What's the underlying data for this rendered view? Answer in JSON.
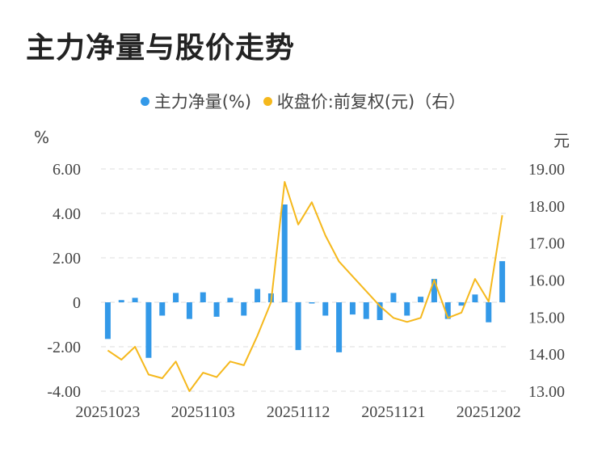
{
  "title": "主力净量与股价走势",
  "legend": {
    "series1": "主力净量(%)",
    "series2": "收盘价:前复权(元)（右）"
  },
  "left_unit": "%",
  "right_unit": "元",
  "colors": {
    "bar": "#3399e8",
    "line": "#f5b81c",
    "grid": "#dddddd"
  },
  "chart_data": {
    "type": "bar+line",
    "x_tick_labels": [
      "20251023",
      "20251103",
      "20251112",
      "20251121",
      "20251202"
    ],
    "left_axis": {
      "ticks": [
        "6.00",
        "4.00",
        "2.00",
        "0",
        "-2.00",
        "-4.00"
      ],
      "range": [
        -4,
        6
      ]
    },
    "right_axis": {
      "ticks": [
        "19.00",
        "18.00",
        "17.00",
        "16.00",
        "15.00",
        "14.00",
        "13.00"
      ],
      "range": [
        13,
        19
      ]
    },
    "series": [
      {
        "name": "主力净量(%)",
        "type": "bar",
        "values": [
          -1.65,
          0.1,
          0.2,
          -2.5,
          -0.6,
          0.42,
          -0.75,
          0.45,
          -0.65,
          0.2,
          -0.6,
          0.6,
          0.4,
          4.4,
          -2.15,
          0.0,
          -0.6,
          -2.25,
          -0.55,
          -0.75,
          -0.8,
          0.42,
          -0.6,
          0.25,
          1.05,
          -0.75,
          -0.15,
          0.35,
          -0.9,
          1.85
        ]
      },
      {
        "name": "收盘价:前复权(元)（右）",
        "type": "line",
        "values": [
          14.1,
          13.85,
          14.2,
          13.45,
          13.35,
          13.8,
          13.0,
          13.5,
          13.38,
          13.8,
          13.7,
          14.5,
          15.4,
          18.65,
          17.5,
          18.1,
          17.2,
          16.5,
          16.1,
          15.7,
          15.3,
          14.98,
          14.87,
          14.98,
          16.0,
          14.98,
          15.12,
          16.03,
          15.42,
          17.75
        ]
      }
    ]
  }
}
